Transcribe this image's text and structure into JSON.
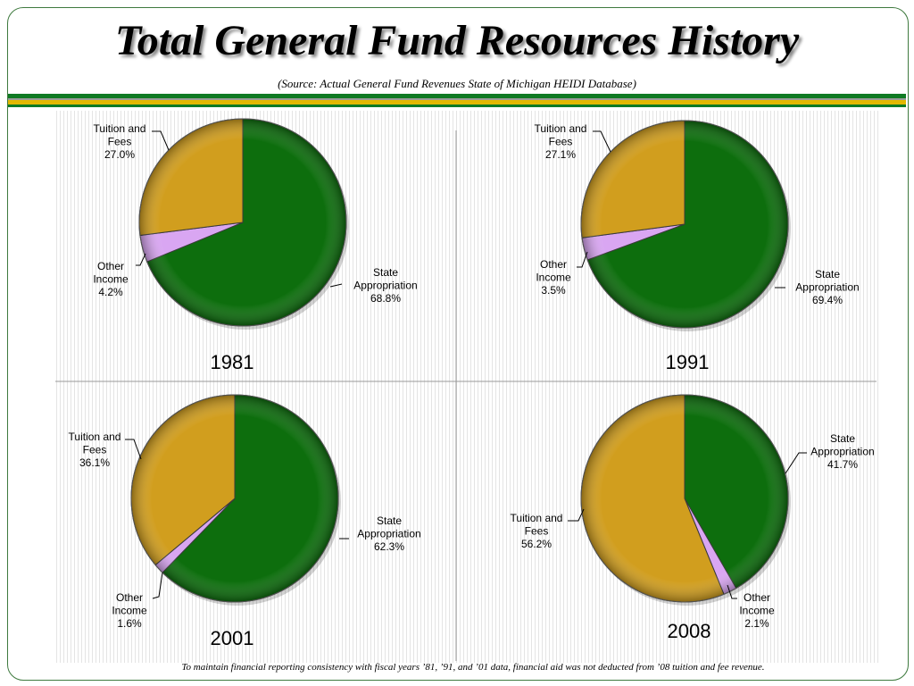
{
  "header": {
    "title": "Total General Fund Resources History",
    "subtitle": "(Source:  Actual General Fund Revenues State of Michigan HEIDI Database)"
  },
  "footnote": "To maintain financial reporting consistency with fiscal years ’81, ’91, and ’01 data, financial aid was not deducted from ’08 tuition and fee revenue.",
  "colors": {
    "state": "#0d6e0d",
    "tuition": "#d19e1e",
    "other": "#d9a6f2",
    "band_green": "#0f7a23",
    "band_yellow": "#e3b800"
  },
  "chart_data": [
    {
      "type": "pie",
      "title": "1981",
      "series": [
        {
          "name": "State Appropriation",
          "value": 68.8,
          "label_lines": [
            "State",
            "Appropriation"
          ],
          "pct_text": "68.8%"
        },
        {
          "name": "Other Income",
          "value": 4.2,
          "label_lines": [
            "Other",
            "Income"
          ],
          "pct_text": "4.2%"
        },
        {
          "name": "Tuition and Fees",
          "value": 27.0,
          "label_lines": [
            "Tuition and",
            "Fees"
          ],
          "pct_text": "27.0%"
        }
      ]
    },
    {
      "type": "pie",
      "title": "1991",
      "series": [
        {
          "name": "State Appropriation",
          "value": 69.4,
          "label_lines": [
            "State",
            "Appropriation"
          ],
          "pct_text": "69.4%"
        },
        {
          "name": "Other Income",
          "value": 3.5,
          "label_lines": [
            "Other",
            "Income"
          ],
          "pct_text": "3.5%"
        },
        {
          "name": "Tuition and Fees",
          "value": 27.1,
          "label_lines": [
            "Tuition and",
            "Fees"
          ],
          "pct_text": "27.1%"
        }
      ]
    },
    {
      "type": "pie",
      "title": "2001",
      "series": [
        {
          "name": "State Appropriation",
          "value": 62.3,
          "label_lines": [
            "State",
            "Appropriation"
          ],
          "pct_text": "62.3%"
        },
        {
          "name": "Other Income",
          "value": 1.6,
          "label_lines": [
            "Other",
            "Income"
          ],
          "pct_text": "1.6%"
        },
        {
          "name": "Tuition and Fees",
          "value": 36.1,
          "label_lines": [
            "Tuition and",
            "Fees"
          ],
          "pct_text": "36.1%"
        }
      ]
    },
    {
      "type": "pie",
      "title": "2008",
      "series": [
        {
          "name": "State Appropriation",
          "value": 41.7,
          "label_lines": [
            "State",
            "Appropriation"
          ],
          "pct_text": "41.7%"
        },
        {
          "name": "Other Income",
          "value": 2.1,
          "label_lines": [
            "Other",
            "Income"
          ],
          "pct_text": "2.1%"
        },
        {
          "name": "Tuition and Fees",
          "value": 56.2,
          "label_lines": [
            "Tuition and",
            "Fees"
          ],
          "pct_text": "56.2%"
        }
      ]
    }
  ]
}
